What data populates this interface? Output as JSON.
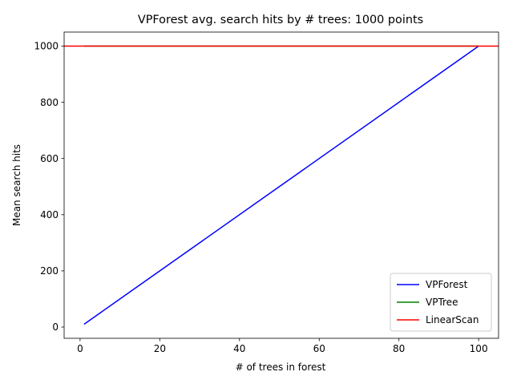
{
  "chart_data": {
    "type": "line",
    "title": "VPForest avg. search hits by # trees: 1000 points",
    "xlabel": "# of trees in forest",
    "ylabel": "Mean search hits",
    "xlim": [
      -4,
      105
    ],
    "ylim": [
      -40,
      1050
    ],
    "xticks": [
      0,
      20,
      40,
      60,
      80,
      100
    ],
    "yticks": [
      0,
      200,
      400,
      600,
      800,
      1000
    ],
    "grid": false,
    "legend_position": "lower right",
    "series": [
      {
        "name": "VPForest",
        "color": "#0000ff",
        "kind": "line",
        "x": [
          1,
          100
        ],
        "y": [
          10,
          1000
        ]
      },
      {
        "name": "VPTree",
        "color": "#008000",
        "kind": "line",
        "x": [
          1,
          100
        ],
        "y": [
          1000,
          1000
        ]
      },
      {
        "name": "LinearScan",
        "color": "#ff0000",
        "kind": "hline",
        "y": 1000
      }
    ]
  }
}
